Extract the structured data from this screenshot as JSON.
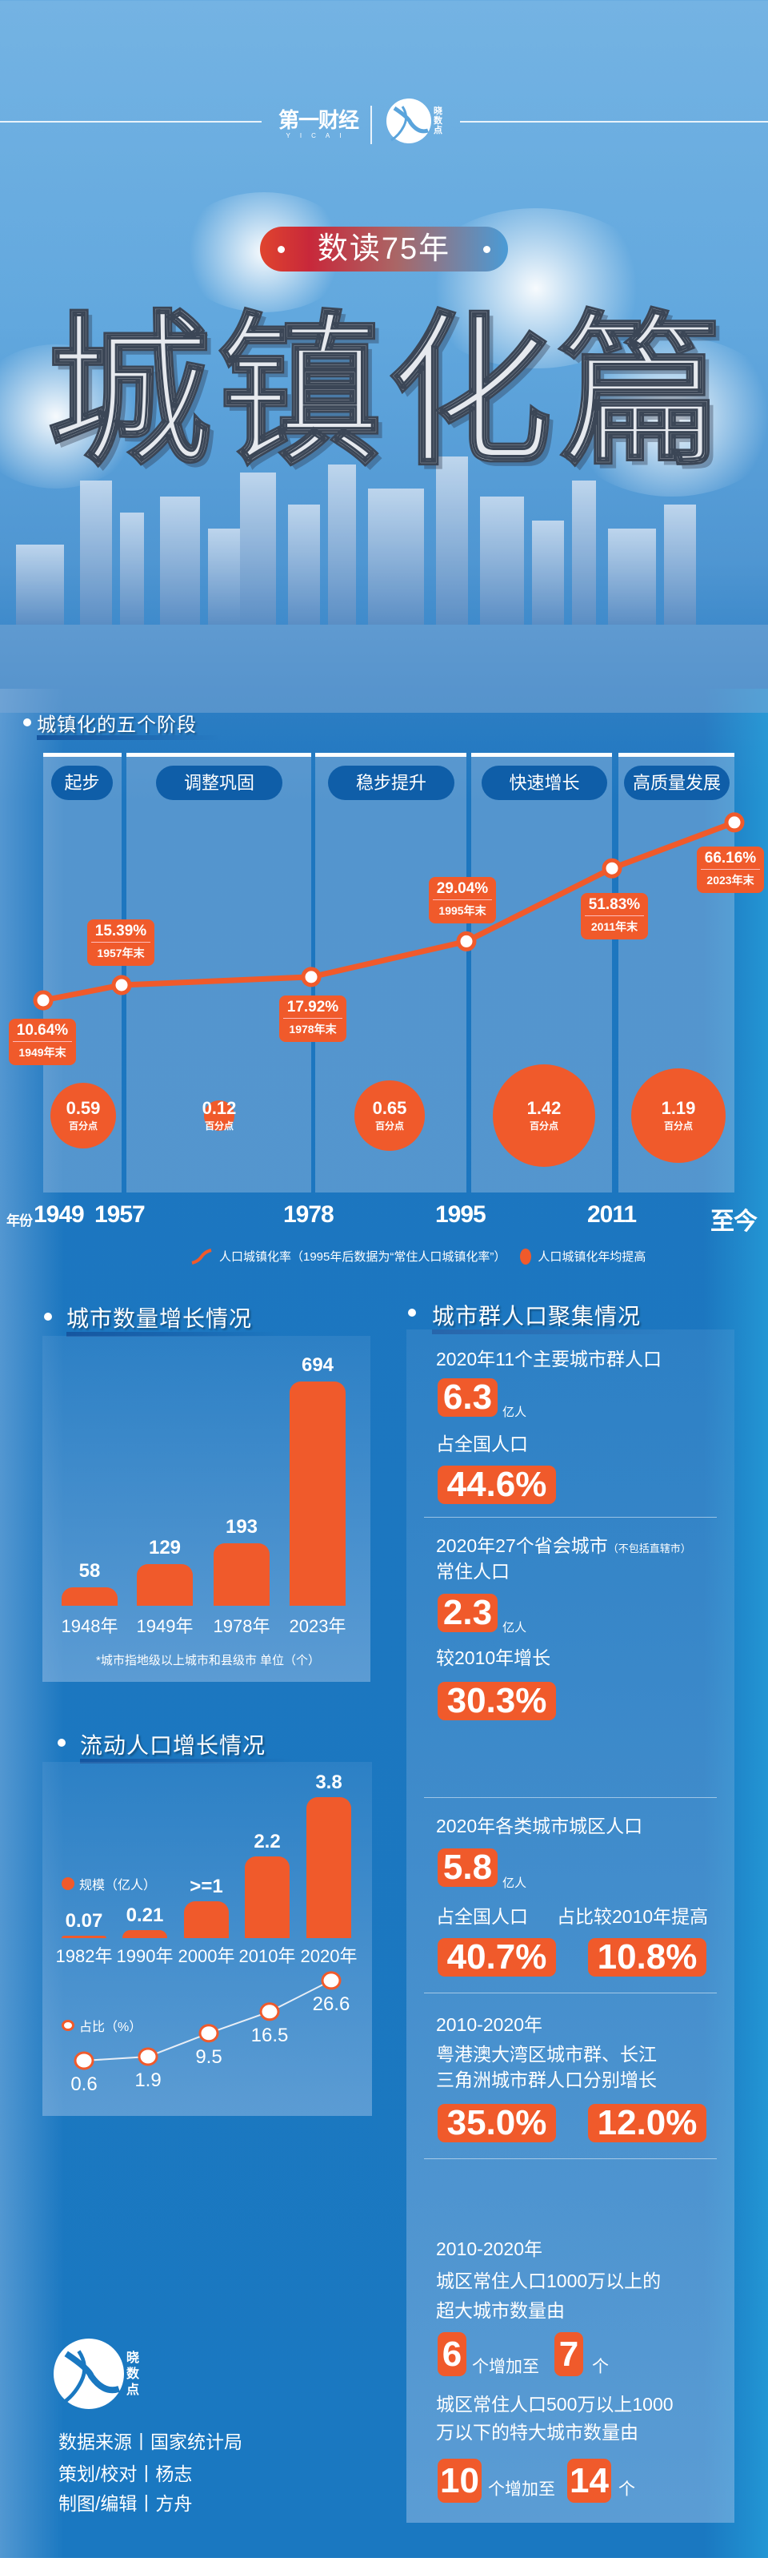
{
  "header": {
    "logo_yicai": "第一财经",
    "logo_yicai_sub": "YICAI",
    "logo_xiaoshudian": "晓数点",
    "badge": "数读75年",
    "title": "城镇化篇"
  },
  "colors": {
    "accent": "#f05a2b",
    "stage_pill": "#0f5ea8",
    "background": "#1a78c1"
  },
  "stages_section": {
    "title": "城镇化的五个阶段",
    "stages": [
      "起步",
      "调整巩固",
      "稳步提升",
      "快速增长",
      "高质量发展"
    ],
    "axis_label": "年份",
    "axis_years": [
      "1949",
      "1957",
      "1978",
      "1995",
      "2011",
      "至今"
    ],
    "legend_line": "人口城镇化率（1995年后数据为“常住人口城镇化率”）",
    "legend_dot": "人口城镇化年均提高"
  },
  "chart_data": [
    {
      "type": "line",
      "title": "人口城镇化率",
      "x": [
        "1949年末",
        "1957年末",
        "1978年末",
        "1995年末",
        "2011年末",
        "2023年末"
      ],
      "values": [
        10.64,
        15.39,
        17.92,
        29.04,
        51.83,
        66.16
      ],
      "labels": [
        "10.64%",
        "15.39%",
        "17.92%",
        "29.04%",
        "51.83%",
        "66.16%"
      ],
      "unit": "%"
    },
    {
      "type": "bubble",
      "title": "人口城镇化年均提高",
      "categories": [
        "起步",
        "调整巩固",
        "稳步提升",
        "快速增长",
        "高质量发展"
      ],
      "values": [
        0.59,
        0.12,
        0.65,
        1.42,
        1.19
      ],
      "labels": [
        "0.59",
        "0.12",
        "0.65",
        "1.42",
        "1.19"
      ],
      "unit": "百分点"
    },
    {
      "type": "bar",
      "title": "城市数量增长情况",
      "categories": [
        "1948年",
        "1949年",
        "1978年",
        "2023年"
      ],
      "values": [
        58,
        129,
        193,
        694
      ],
      "labels": [
        "58",
        "129",
        "193",
        "694"
      ],
      "note": "*城市指地级以上城市和县级市 单位（个）"
    },
    {
      "type": "bar",
      "title": "流动人口增长情况",
      "categories": [
        "1982年",
        "1990年",
        "2000年",
        "2010年",
        "2020年"
      ],
      "series": [
        {
          "name": "规模（亿人）",
          "values": [
            0.07,
            0.21,
            1,
            2.2,
            3.8
          ],
          "labels": [
            "0.07",
            "0.21",
            ">=1",
            "2.2",
            "3.8"
          ]
        },
        {
          "name": "占比（%）",
          "type": "line",
          "values": [
            0.6,
            1.9,
            9.5,
            16.5,
            26.6
          ],
          "labels": [
            "0.6",
            "1.9",
            "9.5",
            "16.5",
            "26.6"
          ]
        }
      ]
    }
  ],
  "cluster": {
    "title": "城市群人口聚集情况",
    "b1": {
      "line1": "2020年11个主要城市群人口",
      "v1": "6.3",
      "u1": "亿人",
      "line2": "占全国人口",
      "v2": "44.6%"
    },
    "b2": {
      "line1": "2020年27个省会城市",
      "note": "（不包括直辖市）",
      "line2": "常住人口",
      "v1": "2.3",
      "u1": "亿人",
      "line3": "较2010年增长",
      "v2": "30.3%"
    },
    "b3": {
      "line1": "2020年各类城市城区人口",
      "v1": "5.8",
      "u1": "亿人",
      "l_a": "占全国人口",
      "l_b": "占比较2010年提高",
      "v_a": "40.7%",
      "v_b": "10.8%"
    },
    "b4": {
      "line1": "2010-2020年",
      "line2": "粤港澳大湾区城市群、长江",
      "line3": "三角洲城市群人口分别增长",
      "v_a": "35.0%",
      "v_b": "12.0%"
    },
    "b5": {
      "line1": "2010-2020年",
      "line2": "城区常住人口1000万以上的",
      "line3": "超大城市数量由",
      "a1": "6",
      "mid": "个增加至",
      "a2": "7",
      "unit": "个",
      "line4": "城区常住人口500万以上1000",
      "line5": "万以下的特大城市数量由",
      "b1": "10",
      "b2": "14"
    }
  },
  "footer": {
    "logo": "晓数点",
    "credits": [
      "数据来源丨国家统计局",
      "策划/校对丨杨志",
      "制图/编辑丨方舟"
    ]
  }
}
